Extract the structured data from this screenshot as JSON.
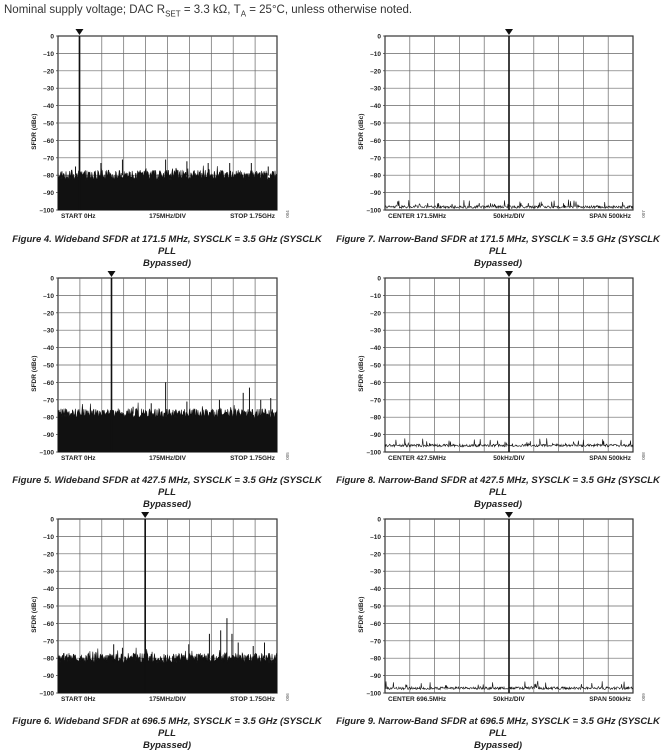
{
  "header": {
    "prefix": "Nominal supply voltage; DAC R",
    "rset_sub": "SET",
    "mid": " = 3.3 kΩ, T",
    "ta_sub": "A",
    "suffix": " = 25°C, unless otherwise noted."
  },
  "figures": [
    {
      "kind": "wideband",
      "caption_line1": "Figure 4. Wideband SFDR at 171.5 MHz, SYSCLK = 3.5 GHz (SYSCLK PLL",
      "caption_line2": "Bypassed)",
      "side_code": "004",
      "chart_data": {
        "type": "spectrum",
        "ylabel": "SFDR (dBc)",
        "y_ticks": [
          "0",
          "–10",
          "–20",
          "–30",
          "–40",
          "–50",
          "–60",
          "–70",
          "–80",
          "–90",
          "–100"
        ],
        "ylim": [
          -100,
          0
        ],
        "x_left_label": "START 0Hz",
        "x_center_label": "175MHz/DIV",
        "x_right_label": "STOP 1.75GHz",
        "noise_floor_dbc": -80,
        "carrier": {
          "freq_mhz": 171.5,
          "dbc": 0
        },
        "spurs": [
          {
            "freq_mhz": 140,
            "dbc": -75
          },
          {
            "freq_mhz": 343,
            "dbc": -73
          },
          {
            "freq_mhz": 515,
            "dbc": -71
          },
          {
            "freq_mhz": 860,
            "dbc": -71
          },
          {
            "freq_mhz": 1030,
            "dbc": -72
          },
          {
            "freq_mhz": 1200,
            "dbc": -73
          },
          {
            "freq_mhz": 1372,
            "dbc": -73
          },
          {
            "freq_mhz": 1545,
            "dbc": -73
          },
          {
            "freq_mhz": 1680,
            "dbc": -75
          }
        ]
      }
    },
    {
      "kind": "narrowband",
      "caption_line1": "Figure 7. Narrow-Band SFDR at 171.5 MHz, SYSCLK = 3.5 GHz (SYSCLK PLL",
      "caption_line2": "Bypassed)",
      "side_code": "007",
      "chart_data": {
        "type": "spectrum",
        "ylabel": "SFDR (dBc)",
        "y_ticks": [
          "0",
          "–10",
          "–20",
          "–30",
          "–40",
          "–50",
          "–60",
          "–70",
          "–80",
          "–90",
          "–100"
        ],
        "ylim": [
          -100,
          0
        ],
        "x_left_label": "CENTER 171.5MHz",
        "x_center_label": "50kHz/DIV",
        "x_right_label": "SPAN 500kHz",
        "noise_floor_dbc": -98,
        "carrier": {
          "freq_khz_offset": 0,
          "dbc": 0
        },
        "spurs": []
      }
    },
    {
      "kind": "wideband",
      "caption_line1": "Figure 5. Wideband SFDR at 427.5 MHz, SYSCLK = 3.5 GHz (SYSCLK PLL",
      "caption_line2": "Bypassed)",
      "side_code": "005",
      "chart_data": {
        "type": "spectrum",
        "ylabel": "SFDR (dBc)",
        "y_ticks": [
          "0",
          "–10",
          "–20",
          "–30",
          "–40",
          "–50",
          "–60",
          "–70",
          "–80",
          "–90",
          "–100"
        ],
        "ylim": [
          -100,
          0
        ],
        "x_left_label": "START 0Hz",
        "x_center_label": "175MHz/DIV",
        "x_right_label": "STOP 1.75GHz",
        "noise_floor_dbc": -78,
        "carrier": {
          "freq_mhz": 427.5,
          "dbc": 0
        },
        "spurs": [
          {
            "freq_mhz": 600,
            "dbc": -74
          },
          {
            "freq_mhz": 745,
            "dbc": -72
          },
          {
            "freq_mhz": 860,
            "dbc": -60
          },
          {
            "freq_mhz": 1030,
            "dbc": -71
          },
          {
            "freq_mhz": 1290,
            "dbc": -70
          },
          {
            "freq_mhz": 1480,
            "dbc": -66
          },
          {
            "freq_mhz": 1530,
            "dbc": -63
          },
          {
            "freq_mhz": 1620,
            "dbc": -70
          },
          {
            "freq_mhz": 1700,
            "dbc": -69
          }
        ]
      }
    },
    {
      "kind": "narrowband",
      "caption_line1": "Figure 8. Narrow-Band SFDR at 427.5 MHz, SYSCLK = 3.5 GHz (SYSCLK PLL",
      "caption_line2": "Bypassed)",
      "side_code": "008",
      "chart_data": {
        "type": "spectrum",
        "ylabel": "SFDR (dBc)",
        "y_ticks": [
          "0",
          "–10",
          "–20",
          "–30",
          "–40",
          "–50",
          "–60",
          "–70",
          "–80",
          "–90",
          "–100"
        ],
        "ylim": [
          -100,
          0
        ],
        "x_left_label": "CENTER 427.5MHz",
        "x_center_label": "50kHz/DIV",
        "x_right_label": "SPAN 500kHz",
        "noise_floor_dbc": -96,
        "carrier": {
          "freq_khz_offset": 0,
          "dbc": 0
        },
        "spurs": []
      }
    },
    {
      "kind": "wideband",
      "caption_line1": "Figure 6. Wideband SFDR at 696.5 MHz, SYSCLK = 3.5 GHz (SYSCLK PLL",
      "caption_line2": "Bypassed)",
      "side_code": "006",
      "chart_data": {
        "type": "spectrum",
        "ylabel": "SFDR (dBc)",
        "y_ticks": [
          "0",
          "–10",
          "–20",
          "–30",
          "–40",
          "–50",
          "–60",
          "–70",
          "–80",
          "–90",
          "–100"
        ],
        "ylim": [
          -100,
          0
        ],
        "x_left_label": "START 0Hz",
        "x_center_label": "175MHz/DIV",
        "x_right_label": "STOP 1.75GHz",
        "noise_floor_dbc": -80,
        "carrier": {
          "freq_mhz": 696.5,
          "dbc": 0
        },
        "spurs": [
          {
            "freq_mhz": 445,
            "dbc": -72
          },
          {
            "freq_mhz": 515,
            "dbc": -74
          },
          {
            "freq_mhz": 1045,
            "dbc": -72
          },
          {
            "freq_mhz": 1210,
            "dbc": -66
          },
          {
            "freq_mhz": 1300,
            "dbc": -64
          },
          {
            "freq_mhz": 1350,
            "dbc": -57
          },
          {
            "freq_mhz": 1390,
            "dbc": -66
          },
          {
            "freq_mhz": 1440,
            "dbc": -71
          },
          {
            "freq_mhz": 1560,
            "dbc": -73
          },
          {
            "freq_mhz": 1650,
            "dbc": -71
          }
        ]
      }
    },
    {
      "kind": "narrowband",
      "caption_line1": "Figure 9. Narrow-Band SFDR at 696.5 MHz, SYSCLK = 3.5 GHz (SYSCLK PLL",
      "caption_line2": "Bypassed)",
      "side_code": "009",
      "chart_data": {
        "type": "spectrum",
        "ylabel": "SFDR (dBc)",
        "y_ticks": [
          "0",
          "–10",
          "–20",
          "–30",
          "–40",
          "–50",
          "–60",
          "–70",
          "–80",
          "–90",
          "–100"
        ],
        "ylim": [
          -100,
          0
        ],
        "x_left_label": "CENTER 696.5MHz",
        "x_center_label": "50kHz/DIV",
        "x_right_label": "SPAN 500kHz",
        "noise_floor_dbc": -97,
        "carrier": {
          "freq_khz_offset": 0,
          "dbc": 0
        },
        "spurs": []
      }
    }
  ]
}
